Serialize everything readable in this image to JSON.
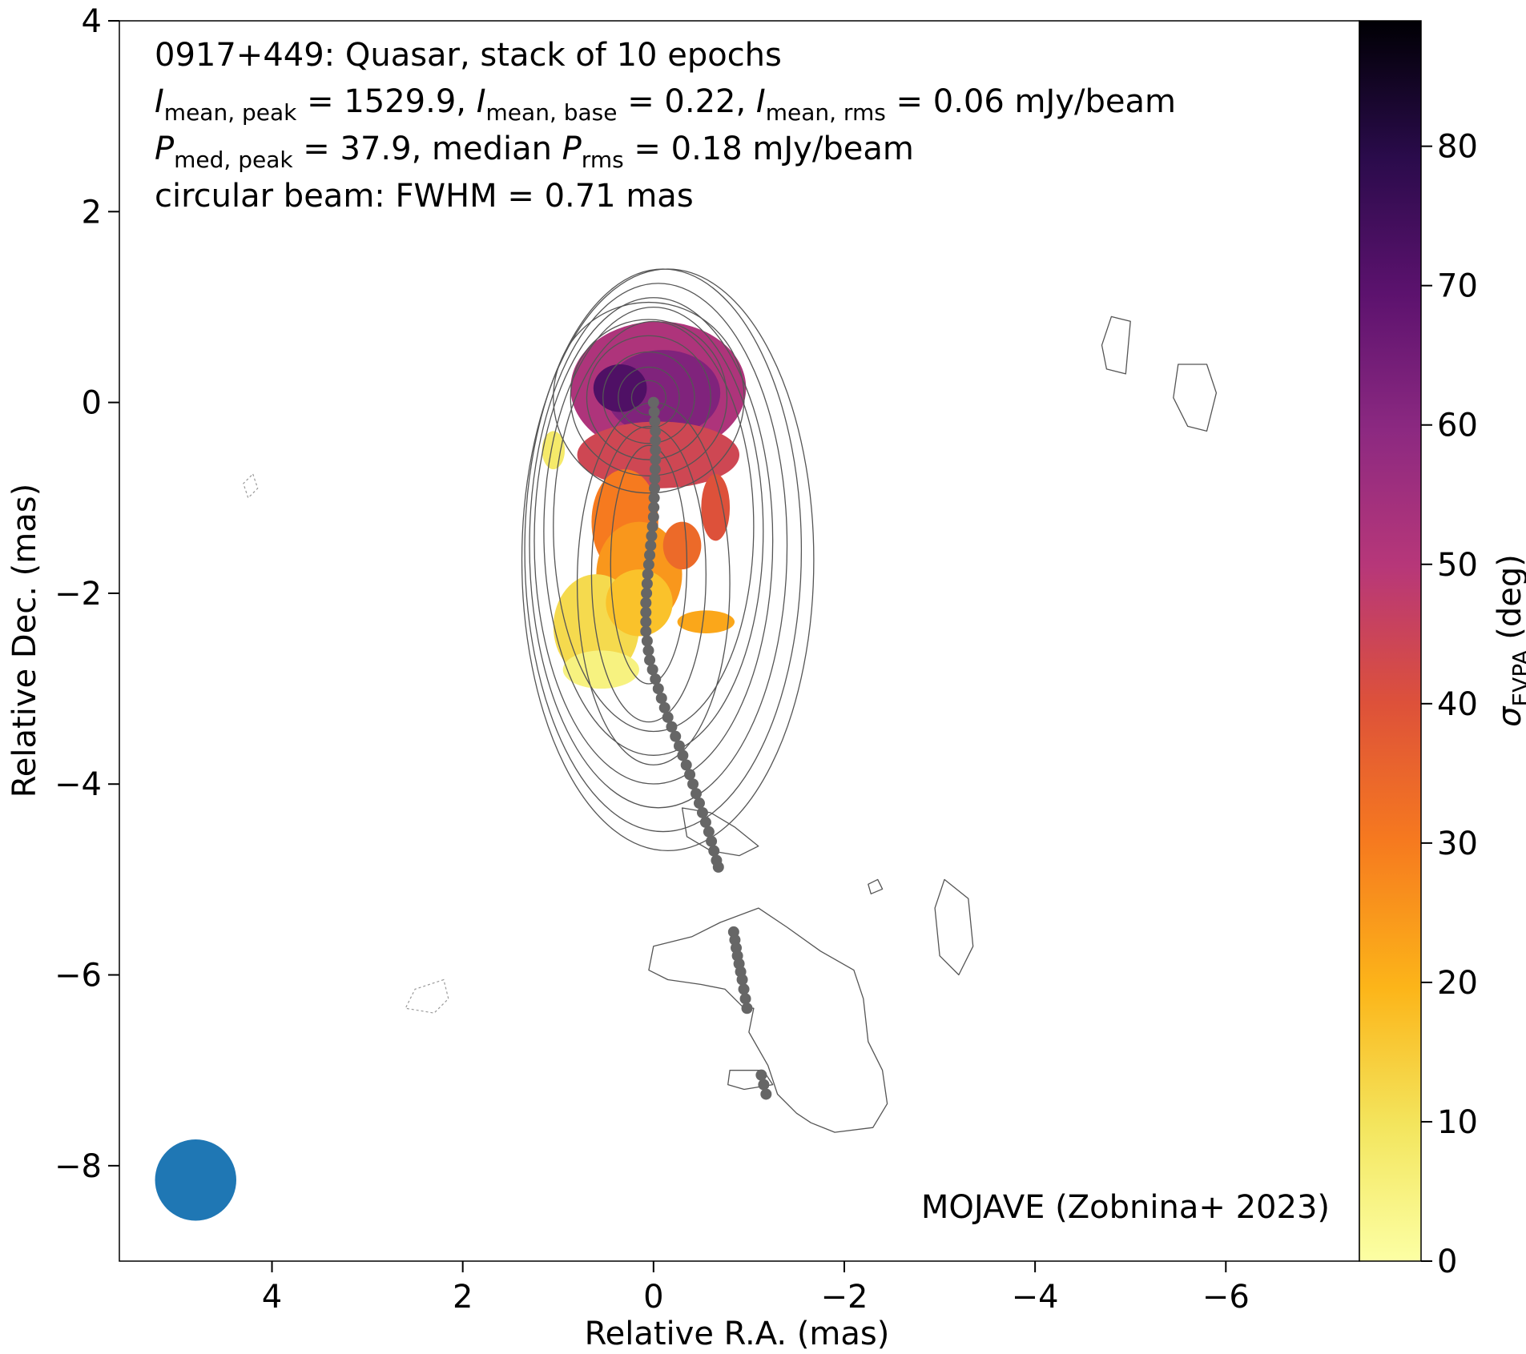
{
  "chart_data": {
    "type": "heatmap",
    "title_lines": [
      "0917+449: Quasar, stack of 10 epochs",
      "I_mean,peak = 1529.9, I_mean,base = 0.22, I_mean,rms = 0.06 mJy/beam",
      "P_med,peak = 37.9, median P_rms = 0.18 mJy/beam",
      "circular beam: FWHM = 0.71 mas"
    ],
    "title": {
      "line1": "0917+449: Quasar, stack of 10 epochs",
      "line2": {
        "i1_sym": "I",
        "i1_sub": "mean, peak",
        "i1_val": " = 1529.9, ",
        "i2_sym": "I",
        "i2_sub": "mean, base",
        "i2_val": " = 0.22, ",
        "i3_sym": "I",
        "i3_sub": "mean, rms",
        "i3_val": " = 0.06 mJy/beam"
      },
      "line3": {
        "p1_sym": "P",
        "p1_sub": "med, peak",
        "p1_val": " = 37.9, median ",
        "p2_sym": "P",
        "p2_sub": "rms",
        "p2_val": " = 0.18 mJy/beam"
      },
      "line4": "circular beam: FWHM = 0.71 mas"
    },
    "xlabel": "Relative R.A. (mas)",
    "ylabel": "Relative Dec. (mas)",
    "xlim": [
      5.6,
      -7.4
    ],
    "ylim": [
      -9.0,
      4.0
    ],
    "xticks": [
      4,
      2,
      0,
      -2,
      -4,
      -6
    ],
    "yticks": [
      4,
      2,
      0,
      -2,
      -4,
      -6,
      -8
    ],
    "xtick_labels": [
      "4",
      "2",
      "0",
      "−2",
      "−4",
      "−6"
    ],
    "ytick_labels": [
      "4",
      "2",
      "0",
      "−2",
      "−4",
      "−6",
      "−8"
    ],
    "annotation": "MOJAVE (Zobnina+ 2023)",
    "colorbar": {
      "label_symbol": "σ",
      "label_sub": "EVPA",
      "label_unit": " (deg)",
      "range": [
        0,
        89
      ],
      "ticks": [
        0,
        10,
        20,
        30,
        40,
        50,
        60,
        70,
        80
      ],
      "tick_labels": [
        "0",
        "10",
        "20",
        "30",
        "40",
        "50",
        "60",
        "70",
        "80"
      ],
      "colormap": "inferno_r"
    },
    "beam": {
      "x": 4.8,
      "y": -8.15,
      "fwhm": 0.71,
      "color": "#1f77b4"
    },
    "ridge_line": {
      "color": "#666666",
      "segments": [
        [
          [
            0.0,
            0.0
          ],
          [
            -0.02,
            -0.3
          ],
          [
            -0.02,
            -0.6
          ],
          [
            -0.01,
            -0.9
          ],
          [
            0.0,
            -1.2
          ],
          [
            0.03,
            -1.5
          ],
          [
            0.06,
            -1.8
          ],
          [
            0.08,
            -2.1
          ],
          [
            0.08,
            -2.4
          ],
          [
            0.04,
            -2.7
          ],
          [
            -0.05,
            -3.0
          ],
          [
            -0.15,
            -3.3
          ],
          [
            -0.27,
            -3.6
          ],
          [
            -0.38,
            -3.9
          ],
          [
            -0.48,
            -4.2
          ],
          [
            -0.58,
            -4.5
          ],
          [
            -0.66,
            -4.8
          ],
          [
            -0.68,
            -4.87
          ]
        ],
        [
          [
            -0.84,
            -5.55
          ],
          [
            -0.88,
            -5.8
          ],
          [
            -0.93,
            -6.05
          ],
          [
            -0.98,
            -6.35
          ]
        ],
        [
          [
            -1.13,
            -7.05
          ],
          [
            -1.18,
            -7.25
          ]
        ]
      ]
    },
    "evpa_regions": [
      {
        "cx": -0.05,
        "cy": 0.15,
        "rx": 0.92,
        "ry": 0.7,
        "value": 52
      },
      {
        "cx": -0.1,
        "cy": 0.1,
        "rx": 0.6,
        "ry": 0.45,
        "value": 62
      },
      {
        "cx": 0.35,
        "cy": 0.15,
        "rx": 0.28,
        "ry": 0.25,
        "value": 72
      },
      {
        "cx": -0.05,
        "cy": -0.55,
        "rx": 0.85,
        "ry": 0.35,
        "value": 44
      },
      {
        "cx": 0.3,
        "cy": -1.25,
        "rx": 0.35,
        "ry": 0.55,
        "value": 30
      },
      {
        "cx": 0.15,
        "cy": -1.8,
        "rx": 0.45,
        "ry": 0.55,
        "value": 25
      },
      {
        "cx": -0.3,
        "cy": -1.5,
        "rx": 0.2,
        "ry": 0.25,
        "value": 34
      },
      {
        "cx": 0.6,
        "cy": -2.35,
        "rx": 0.45,
        "ry": 0.55,
        "value": 12
      },
      {
        "cx": 0.55,
        "cy": -2.8,
        "rx": 0.4,
        "ry": 0.2,
        "value": 5
      },
      {
        "cx": 0.15,
        "cy": -2.1,
        "rx": 0.35,
        "ry": 0.35,
        "value": 17
      },
      {
        "cx": -0.55,
        "cy": -2.3,
        "rx": 0.3,
        "ry": 0.12,
        "value": 22
      },
      {
        "cx": 1.05,
        "cy": -0.5,
        "rx": 0.12,
        "ry": 0.2,
        "value": 8
      },
      {
        "cx": -0.65,
        "cy": -1.1,
        "rx": 0.15,
        "ry": 0.35,
        "value": 40
      }
    ],
    "contours": {
      "color": "#555555",
      "core_levels": [
        0.18,
        0.32,
        0.48,
        0.65,
        0.82,
        1.0
      ],
      "core_center": [
        0.05,
        0.05
      ],
      "outer_levels": [
        {
          "cx": 0.0,
          "cy": -1.3,
          "rx": 1.05,
          "ry": 2.15
        },
        {
          "cx": 0.0,
          "cy": -1.35,
          "rx": 1.15,
          "ry": 2.35
        },
        {
          "cx": 0.0,
          "cy": -1.45,
          "rx": 1.25,
          "ry": 2.55
        },
        {
          "cx": -0.05,
          "cy": -1.5,
          "rx": 1.35,
          "ry": 2.75
        },
        {
          "cx": -0.1,
          "cy": -1.55,
          "rx": 1.45,
          "ry": 2.95
        },
        {
          "cx": -0.15,
          "cy": -1.65,
          "rx": 1.53,
          "ry": 3.05
        }
      ],
      "inner_jet_levels": [
        {
          "cx": 0.05,
          "cy": -1.7,
          "rx": 0.4,
          "ry": 1.25
        },
        {
          "cx": 0.05,
          "cy": -1.8,
          "rx": 0.6,
          "ry": 1.55
        },
        {
          "cx": 0.0,
          "cy": -1.9,
          "rx": 0.8,
          "ry": 1.9
        }
      ],
      "islands": [
        [
          [
            -4.8,
            0.9
          ],
          [
            -5.0,
            0.85
          ],
          [
            -4.95,
            0.3
          ],
          [
            -4.75,
            0.35
          ],
          [
            -4.7,
            0.6
          ]
        ],
        [
          [
            -5.5,
            0.4
          ],
          [
            -5.8,
            0.4
          ],
          [
            -5.9,
            0.1
          ],
          [
            -5.8,
            -0.3
          ],
          [
            -5.6,
            -0.25
          ],
          [
            -5.45,
            0.05
          ]
        ],
        [
          [
            -3.3,
            -5.2
          ],
          [
            -3.05,
            -5.0
          ],
          [
            -2.95,
            -5.3
          ],
          [
            -3.0,
            -5.8
          ],
          [
            -3.2,
            -6.0
          ],
          [
            -3.35,
            -5.7
          ]
        ],
        [
          [
            -2.25,
            -5.05
          ],
          [
            -2.35,
            -5.0
          ],
          [
            -2.4,
            -5.1
          ],
          [
            -2.28,
            -5.15
          ]
        ],
        [
          [
            -0.3,
            -4.25
          ],
          [
            -0.6,
            -4.3
          ],
          [
            -0.85,
            -4.45
          ],
          [
            -1.1,
            -4.65
          ],
          [
            -0.9,
            -4.75
          ],
          [
            -0.6,
            -4.7
          ],
          [
            -0.35,
            -4.55
          ]
        ],
        [
          [
            0.0,
            -5.7
          ],
          [
            -0.4,
            -5.6
          ],
          [
            -0.7,
            -5.45
          ],
          [
            -1.1,
            -5.3
          ],
          [
            -1.4,
            -5.5
          ],
          [
            -1.75,
            -5.75
          ],
          [
            -2.1,
            -5.95
          ],
          [
            -2.2,
            -6.25
          ],
          [
            -2.25,
            -6.7
          ],
          [
            -2.4,
            -7.0
          ],
          [
            -2.45,
            -7.35
          ],
          [
            -2.3,
            -7.6
          ],
          [
            -1.9,
            -7.65
          ],
          [
            -1.65,
            -7.55
          ],
          [
            -1.5,
            -7.45
          ],
          [
            -1.3,
            -7.25
          ],
          [
            -1.2,
            -6.95
          ],
          [
            -1.0,
            -6.6
          ],
          [
            -1.05,
            -6.35
          ],
          [
            -0.95,
            -6.35
          ],
          [
            -0.75,
            -6.15
          ],
          [
            -0.5,
            -6.1
          ],
          [
            -0.15,
            -6.05
          ],
          [
            0.05,
            -5.95
          ]
        ],
        [
          [
            -0.8,
            -7.0
          ],
          [
            -1.15,
            -7.0
          ],
          [
            -1.25,
            -7.15
          ],
          [
            -0.95,
            -7.2
          ],
          [
            -0.78,
            -7.15
          ]
        ]
      ],
      "negative_islands": [
        [
          [
            4.2,
            -0.75
          ],
          [
            4.15,
            -0.9
          ],
          [
            4.25,
            -1.0
          ],
          [
            4.3,
            -0.85
          ]
        ],
        [
          [
            2.2,
            -6.05
          ],
          [
            2.5,
            -6.15
          ],
          [
            2.6,
            -6.35
          ],
          [
            2.3,
            -6.4
          ],
          [
            2.15,
            -6.25
          ]
        ]
      ]
    }
  }
}
